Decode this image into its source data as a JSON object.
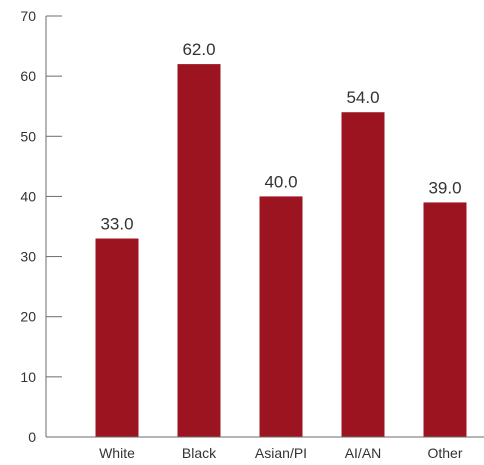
{
  "chart_data": {
    "type": "bar",
    "title": "",
    "xlabel": "",
    "ylabel": "",
    "categories": [
      "White",
      "Black",
      "Asian/PI",
      "AI/AN",
      "Other"
    ],
    "values": [
      33.0,
      62.0,
      40.0,
      54.0,
      39.0
    ],
    "data_labels": [
      "33.0",
      "62.0",
      "40.0",
      "54.0",
      "39.0"
    ],
    "ylim": [
      0,
      70
    ],
    "yticks": [
      0,
      10,
      20,
      30,
      40,
      50,
      60,
      70
    ],
    "ytick_labels": [
      "0",
      "10",
      "20",
      "30",
      "40",
      "50",
      "60",
      "70"
    ],
    "grid": false,
    "legend": "none",
    "bar_color": "#9b1420"
  }
}
